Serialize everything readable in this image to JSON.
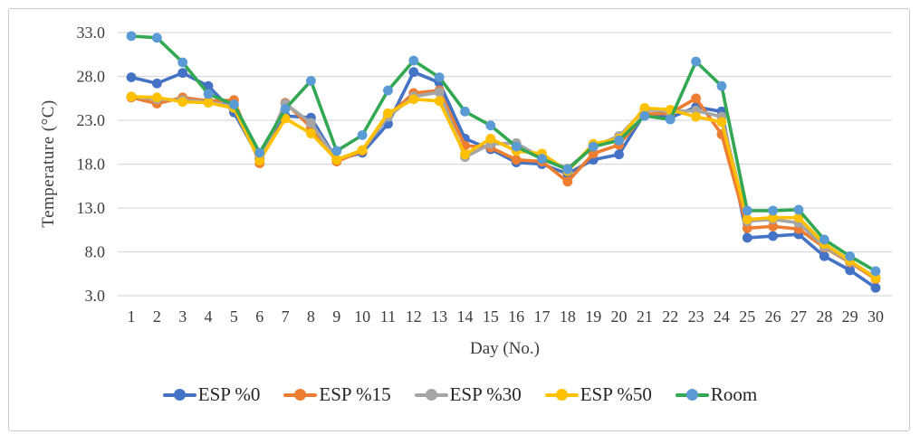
{
  "figure": {
    "y_axis_title": "Temperature (°C)",
    "x_axis_title": "Day (No.)"
  },
  "style": {
    "gridline_color": "#d9d9d9",
    "border_color": "#c9c9c9",
    "tick_label_color": "#3d3d3d"
  },
  "chart_data": {
    "type": "line",
    "title": "",
    "xlabel": "Day (No.)",
    "ylabel": "Temperature (°C)",
    "x": [
      1,
      2,
      3,
      4,
      5,
      6,
      7,
      8,
      9,
      10,
      11,
      12,
      13,
      14,
      15,
      16,
      17,
      18,
      19,
      20,
      21,
      22,
      23,
      24,
      25,
      26,
      27,
      28,
      29,
      30
    ],
    "y_ticks": [
      3.0,
      8.0,
      13.0,
      18.0,
      23.0,
      28.0,
      33.0
    ],
    "ylim": [
      3.0,
      33.0
    ],
    "grid": "horizontal",
    "legend_position": "bottom",
    "series": [
      {
        "name": "ESP %0",
        "color": "#4472c4",
        "marker_color": "#4472c4",
        "values": [
          27.9,
          27.2,
          28.4,
          26.9,
          23.9,
          18.6,
          23.5,
          23.3,
          18.5,
          19.3,
          22.6,
          28.5,
          27.3,
          20.9,
          19.7,
          18.2,
          18.0,
          16.9,
          18.5,
          19.1,
          23.8,
          23.3,
          24.5,
          24.0,
          9.6,
          9.8,
          10.0,
          7.5,
          5.9,
          3.9
        ]
      },
      {
        "name": "ESP %15",
        "color": "#ed7d31",
        "marker_color": "#ed7d31",
        "values": [
          25.6,
          24.9,
          25.6,
          25.2,
          25.3,
          18.1,
          25.0,
          22.2,
          18.3,
          19.5,
          23.5,
          26.1,
          26.4,
          20.1,
          19.9,
          18.5,
          18.3,
          16.0,
          19.2,
          20.2,
          23.7,
          23.8,
          25.5,
          21.4,
          10.7,
          10.9,
          10.6,
          8.5,
          6.8,
          4.9
        ]
      },
      {
        "name": "ESP %30",
        "color": "#a5a5a5",
        "marker_color": "#a5a5a5",
        "values": [
          25.7,
          25.4,
          25.3,
          25.1,
          24.6,
          18.4,
          24.9,
          22.7,
          18.5,
          19.6,
          23.4,
          25.7,
          26.2,
          18.8,
          20.3,
          20.4,
          18.7,
          17.5,
          20.0,
          21.2,
          24.2,
          24.0,
          24.1,
          23.4,
          11.5,
          11.7,
          11.3,
          8.6,
          6.9,
          5.1
        ]
      },
      {
        "name": "ESP %50",
        "color": "#ffc000",
        "marker_color": "#ffc000",
        "values": [
          25.7,
          25.6,
          25.1,
          25.0,
          24.4,
          18.4,
          23.2,
          21.5,
          18.5,
          19.6,
          23.8,
          25.4,
          25.2,
          19.1,
          20.9,
          19.5,
          19.2,
          17.2,
          20.3,
          20.9,
          24.4,
          24.2,
          23.4,
          22.8,
          11.7,
          11.9,
          11.9,
          8.9,
          7.0,
          5.0
        ]
      },
      {
        "name": "Room",
        "color": "#33a852",
        "marker_color": "#5b9bd5",
        "values": [
          32.6,
          32.4,
          29.6,
          26.0,
          24.8,
          19.3,
          24.3,
          27.5,
          19.5,
          21.3,
          26.4,
          29.8,
          27.9,
          24.0,
          22.4,
          20.0,
          18.6,
          17.4,
          20.0,
          20.7,
          23.5,
          23.1,
          29.7,
          26.9,
          12.7,
          12.7,
          12.8,
          9.4,
          7.5,
          5.8
        ]
      }
    ]
  }
}
